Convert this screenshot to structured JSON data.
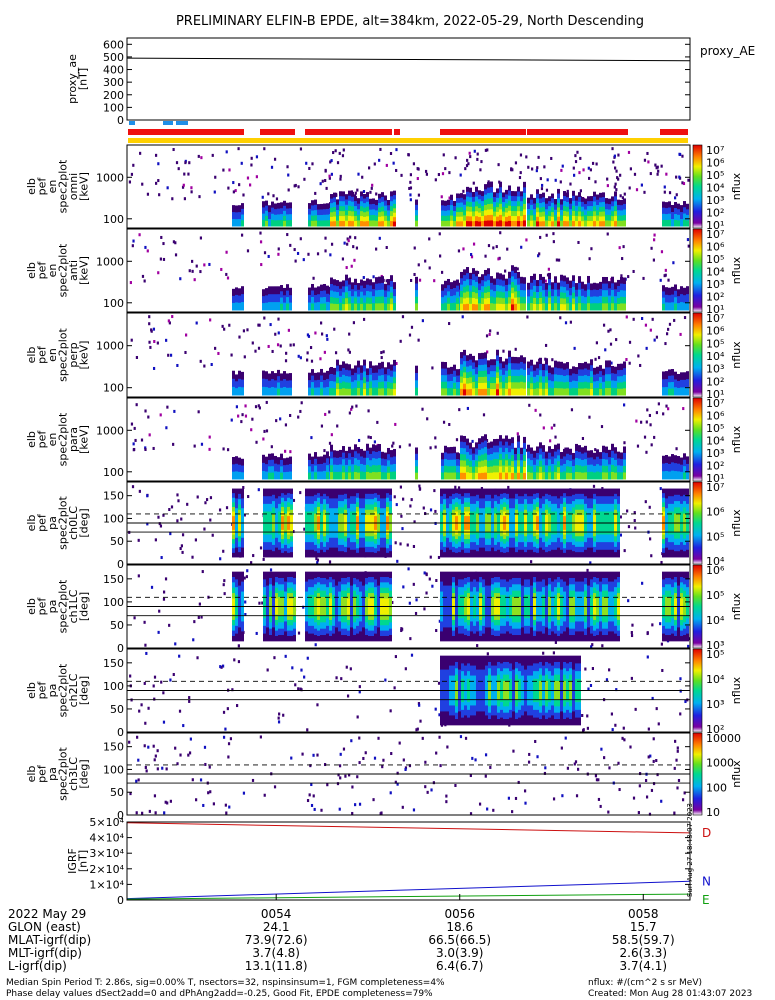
{
  "title": "PRELIMINARY ELFIN-B EPDE, alt=384km, 2022-05-29, North Descending",
  "colors": {
    "red_bar": "#ee1010",
    "yellow_bar": "#ffd000",
    "blue_bar": "#1f8fe8",
    "ae_line": "#000000",
    "bz_line": "#cc1010",
    "bx_line": "#1010cc",
    "by_line": "#10a010"
  },
  "chart_data": [
    {
      "type": "line",
      "name": "proxy_ae",
      "ylabel_lines": [
        "proxy_ae",
        "[nT]"
      ],
      "ylim": [
        0,
        650
      ],
      "yticks": [
        0,
        100,
        200,
        300,
        400,
        500,
        600
      ],
      "ytick_labels": [
        "0",
        "100",
        "200",
        "300",
        "400",
        "500",
        "600"
      ],
      "legend": "proxy_AE",
      "x": [
        0,
        1
      ],
      "y": [
        490,
        470
      ]
    },
    {
      "type": "heatmap",
      "name": "en-spectrogram-1",
      "ylabel_lines": [
        "elb",
        "pef",
        "en",
        "spec2plot",
        "omni",
        "[keV]"
      ],
      "scale": "log",
      "ylim": [
        60,
        6000
      ],
      "yticks": [
        100,
        1000
      ],
      "ytick_labels": [
        "100",
        "1000"
      ],
      "colorbar_labels": [
        "10⁷",
        "10⁶",
        "10⁵",
        "10⁴",
        "10³",
        "10²",
        "10¹"
      ],
      "colorbar_title": "nflux"
    },
    {
      "type": "heatmap",
      "name": "en-spectrogram-2",
      "ylabel_lines": [
        "elb",
        "pef",
        "en",
        "spec2plot",
        "anti",
        "[keV]"
      ],
      "scale": "log",
      "ylim": [
        60,
        6000
      ],
      "yticks": [
        100,
        1000
      ],
      "ytick_labels": [
        "100",
        "1000"
      ],
      "colorbar_labels": [
        "10⁷",
        "10⁶",
        "10⁵",
        "10⁴",
        "10³",
        "10²",
        "10¹"
      ],
      "colorbar_title": "nflux"
    },
    {
      "type": "heatmap",
      "name": "en-spectrogram-3",
      "ylabel_lines": [
        "elb",
        "pef",
        "en",
        "spec2plot",
        "perp",
        "[keV]"
      ],
      "scale": "log",
      "ylim": [
        60,
        6000
      ],
      "yticks": [
        100,
        1000
      ],
      "ytick_labels": [
        "100",
        "1000"
      ],
      "colorbar_labels": [
        "10⁷",
        "10⁶",
        "10⁵",
        "10⁴",
        "10³",
        "10²",
        "10¹"
      ],
      "colorbar_title": "nflux"
    },
    {
      "type": "heatmap",
      "name": "en-spectrogram-4",
      "ylabel_lines": [
        "elb",
        "pef",
        "en",
        "spec2plot",
        "para",
        "[keV]"
      ],
      "scale": "log",
      "ylim": [
        60,
        6000
      ],
      "yticks": [
        100,
        1000
      ],
      "ytick_labels": [
        "100",
        "1000"
      ],
      "colorbar_labels": [
        "10⁷",
        "10⁶",
        "10⁵",
        "10⁴",
        "10³",
        "10²",
        "10¹"
      ],
      "colorbar_title": "nflux"
    },
    {
      "type": "heatmap",
      "name": "pa-spectrogram-ch0",
      "ylabel_lines": [
        "elb",
        "pef",
        "pa",
        "spec2plot",
        "ch0LC",
        "[deg]"
      ],
      "ylim": [
        0,
        180
      ],
      "yticks": [
        0,
        50,
        100,
        150
      ],
      "ytick_labels": [
        "0",
        "50",
        "100",
        "150"
      ],
      "colorbar_labels": [
        "10⁷",
        "10⁶",
        "10⁵",
        "10⁴"
      ],
      "colorbar_title": "nflux"
    },
    {
      "type": "heatmap",
      "name": "pa-spectrogram-ch1",
      "ylabel_lines": [
        "elb",
        "pef",
        "pa",
        "spec2plot",
        "ch1LC",
        "[deg]"
      ],
      "ylim": [
        0,
        180
      ],
      "yticks": [
        0,
        50,
        100,
        150
      ],
      "ytick_labels": [
        "0",
        "50",
        "100",
        "150"
      ],
      "colorbar_labels": [
        "10⁶",
        "10⁵",
        "10⁴",
        "10³"
      ],
      "colorbar_title": "nflux"
    },
    {
      "type": "heatmap",
      "name": "pa-spectrogram-ch2",
      "ylabel_lines": [
        "elb",
        "pef",
        "pa",
        "spec2plot",
        "ch2LC",
        "[deg]"
      ],
      "ylim": [
        0,
        180
      ],
      "yticks": [
        0,
        50,
        100,
        150
      ],
      "ytick_labels": [
        "0",
        "50",
        "100",
        "150"
      ],
      "colorbar_labels": [
        "10⁵",
        "10⁴",
        "10³",
        "10²"
      ],
      "colorbar_title": "nflux"
    },
    {
      "type": "heatmap",
      "name": "pa-spectrogram-ch3",
      "ylabel_lines": [
        "elb",
        "pef",
        "pa",
        "spec2plot",
        "ch3LC",
        "[deg]"
      ],
      "ylim": [
        0,
        180
      ],
      "yticks": [
        0,
        50,
        100,
        150
      ],
      "ytick_labels": [
        "0",
        "50",
        "100",
        "150"
      ],
      "colorbar_labels": [
        "10000",
        "1000",
        "100",
        "10"
      ],
      "colorbar_title": "nflux"
    },
    {
      "type": "line",
      "name": "igrf",
      "ylabel_lines": [
        "IGRF",
        "[nT]"
      ],
      "ylim": [
        0,
        50000
      ],
      "yticks": [
        0,
        10000,
        20000,
        30000,
        40000,
        50000
      ],
      "ytick_labels": [
        "0",
        "1×10⁴",
        "2×10⁴",
        "3×10⁴",
        "4×10⁴",
        "5×10⁴"
      ],
      "series": [
        {
          "name": "D",
          "x": [
            0,
            1
          ],
          "y": [
            49500,
            43000
          ]
        },
        {
          "name": "N",
          "x": [
            0,
            1
          ],
          "y": [
            900,
            12000
          ]
        },
        {
          "name": "E",
          "x": [
            0,
            1
          ],
          "y": [
            600,
            3800
          ]
        }
      ]
    }
  ],
  "side_stamp": "Sun Aug 27 18:43:07 2023",
  "xaxis": {
    "ticks": [
      {
        "frac": 0.265,
        "label": "0054"
      },
      {
        "frac": 0.591,
        "label": "0056"
      },
      {
        "frac": 0.917,
        "label": "0058"
      }
    ]
  },
  "ephem": {
    "date": "2022 May 29",
    "rows": [
      {
        "name": "GLON (east)",
        "values": [
          "24.1",
          "18.6",
          "15.7"
        ]
      },
      {
        "name": "MLAT-igrf(dip)",
        "values": [
          "73.9(72.6)",
          "66.5(66.5)",
          "58.5(59.7)"
        ]
      },
      {
        "name": "MLT-igrf(dip)",
        "values": [
          "3.7(4.8)",
          "3.0(3.9)",
          "2.6(3.3)"
        ]
      },
      {
        "name": "L-igrf(dip)",
        "values": [
          "13.1(11.8)",
          "6.4(6.7)",
          "3.7(4.1)"
        ]
      }
    ]
  },
  "footer": {
    "line1": "Median Spin Period T: 2.86s, sig=0.00% T, nsectors=32, nspinsinsum=1, FGM completeness=4%",
    "line2": "Phase delay values dSect2add=0 and dPhAng2add=-0.25, Good Fit, EPDE completeness=79%",
    "units": "nflux: #/(cm^2 s sr MeV)",
    "created": "Created: Mon Aug 28 01:43:07 2023"
  }
}
